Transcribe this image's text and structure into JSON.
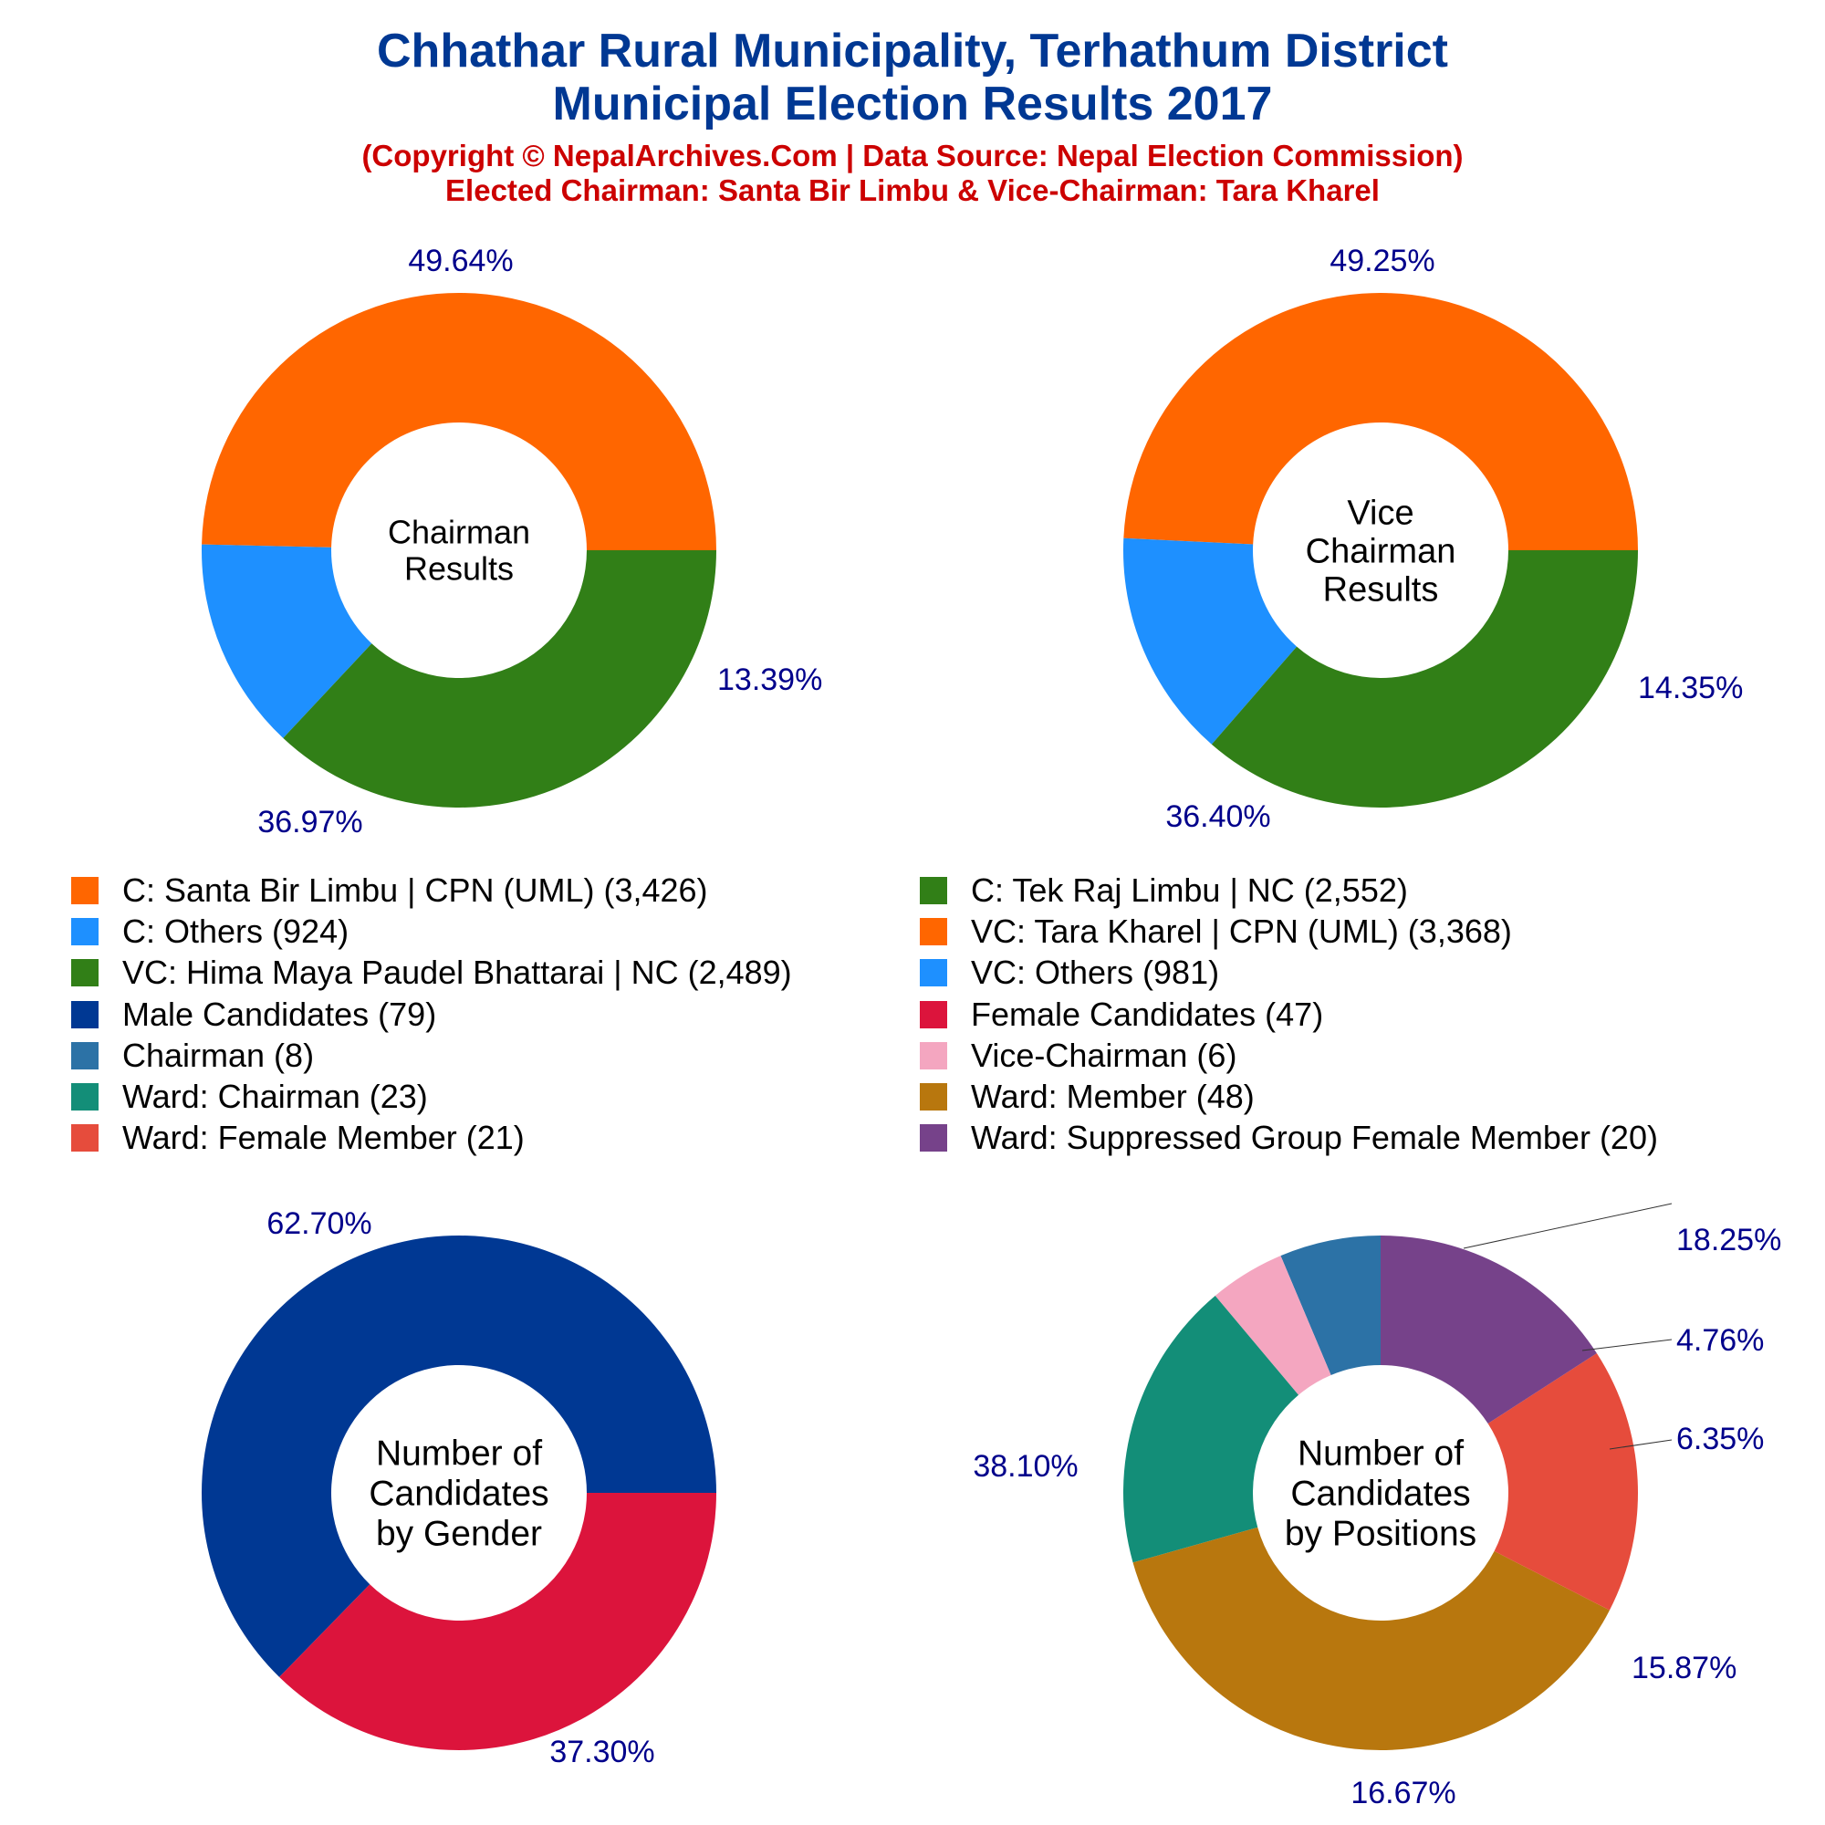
{
  "header": {
    "title_line1": "Chhathar Rural Municipality, Terhathum District",
    "title_line2": "Municipal Election Results 2017",
    "subtitle_line1": "(Copyright © NepalArchives.Com | Data Source: Nepal Election Commission)",
    "subtitle_line2": "Elected Chairman: Santa Bir Limbu & Vice-Chairman: Tara Kharel"
  },
  "chart_data": [
    {
      "type": "pie",
      "style": "donut",
      "center_label": [
        "Chairman",
        "Results"
      ],
      "slices": [
        {
          "label": "C: Santa Bir Limbu | CPN (UML)",
          "value": 3426,
          "percent_label": "49.64%",
          "color": "#ff6600"
        },
        {
          "label": "C: Others",
          "value": 924,
          "percent_label": "13.39%",
          "color": "#1e90ff"
        },
        {
          "label": "C: Tek Raj Limbu | NC",
          "value": 2552,
          "percent_label": "36.97%",
          "color": "#317f17"
        }
      ]
    },
    {
      "type": "pie",
      "style": "donut",
      "center_label": [
        "Vice",
        "Chairman",
        "Results"
      ],
      "slices": [
        {
          "label": "VC: Tara Kharel | CPN (UML)",
          "value": 3368,
          "percent_label": "49.25%",
          "color": "#ff6600"
        },
        {
          "label": "VC: Others",
          "value": 981,
          "percent_label": "14.35%",
          "color": "#1e90ff"
        },
        {
          "label": "VC: Hima Maya Paudel Bhattarai | NC",
          "value": 2489,
          "percent_label": "36.40%",
          "color": "#317f17"
        }
      ]
    },
    {
      "type": "pie",
      "style": "donut",
      "center_label": [
        "Number of",
        "Candidates",
        "by Gender"
      ],
      "slices": [
        {
          "label": "Male Candidates",
          "value": 79,
          "percent_label": "62.70%",
          "color": "#003893"
        },
        {
          "label": "Female Candidates",
          "value": 47,
          "percent_label": "37.30%",
          "color": "#dc143c"
        }
      ]
    },
    {
      "type": "pie",
      "style": "donut",
      "center_label": [
        "Number of",
        "Candidates",
        "by Positions"
      ],
      "slices": [
        {
          "label": "Chairman",
          "value": 8,
          "percent_label": "6.35%",
          "color": "#2c72a6"
        },
        {
          "label": "Vice-Chairman",
          "value": 6,
          "percent_label": "4.76%",
          "color": "#f4a6c0"
        },
        {
          "label": "Ward: Chairman",
          "value": 23,
          "percent_label": "18.25%",
          "color": "#138e78"
        },
        {
          "label": "Ward: Member",
          "value": 48,
          "percent_label": "38.10%",
          "color": "#b8770e"
        },
        {
          "label": "Ward: Female Member",
          "value": 21,
          "percent_label": "16.67%",
          "color": "#e64c3c"
        },
        {
          "label": "Ward: Suppressed Group Female Member",
          "value": 20,
          "percent_label": "15.87%",
          "color": "#76428a"
        }
      ]
    }
  ],
  "legend": [
    {
      "text": "C: Santa Bir Limbu | CPN (UML) (3,426)",
      "color": "#ff6600"
    },
    {
      "text": "C: Tek Raj Limbu | NC (2,552)",
      "color": "#317f17"
    },
    {
      "text": "C: Others (924)",
      "color": "#1e90ff"
    },
    {
      "text": "VC: Tara Kharel | CPN (UML) (3,368)",
      "color": "#ff6600"
    },
    {
      "text": "VC: Hima Maya Paudel Bhattarai | NC (2,489)",
      "color": "#317f17"
    },
    {
      "text": "VC: Others (981)",
      "color": "#1e90ff"
    },
    {
      "text": "Male Candidates (79)",
      "color": "#003893"
    },
    {
      "text": "Female Candidates (47)",
      "color": "#dc143c"
    },
    {
      "text": "Chairman (8)",
      "color": "#2c72a6"
    },
    {
      "text": "Vice-Chairman (6)",
      "color": "#f4a6c0"
    },
    {
      "text": "Ward: Chairman (23)",
      "color": "#138e78"
    },
    {
      "text": "Ward: Member (48)",
      "color": "#b8770e"
    },
    {
      "text": "Ward: Female Member (21)",
      "color": "#e64c3c"
    },
    {
      "text": "Ward: Suppressed Group Female Member (20)",
      "color": "#76428a"
    }
  ]
}
